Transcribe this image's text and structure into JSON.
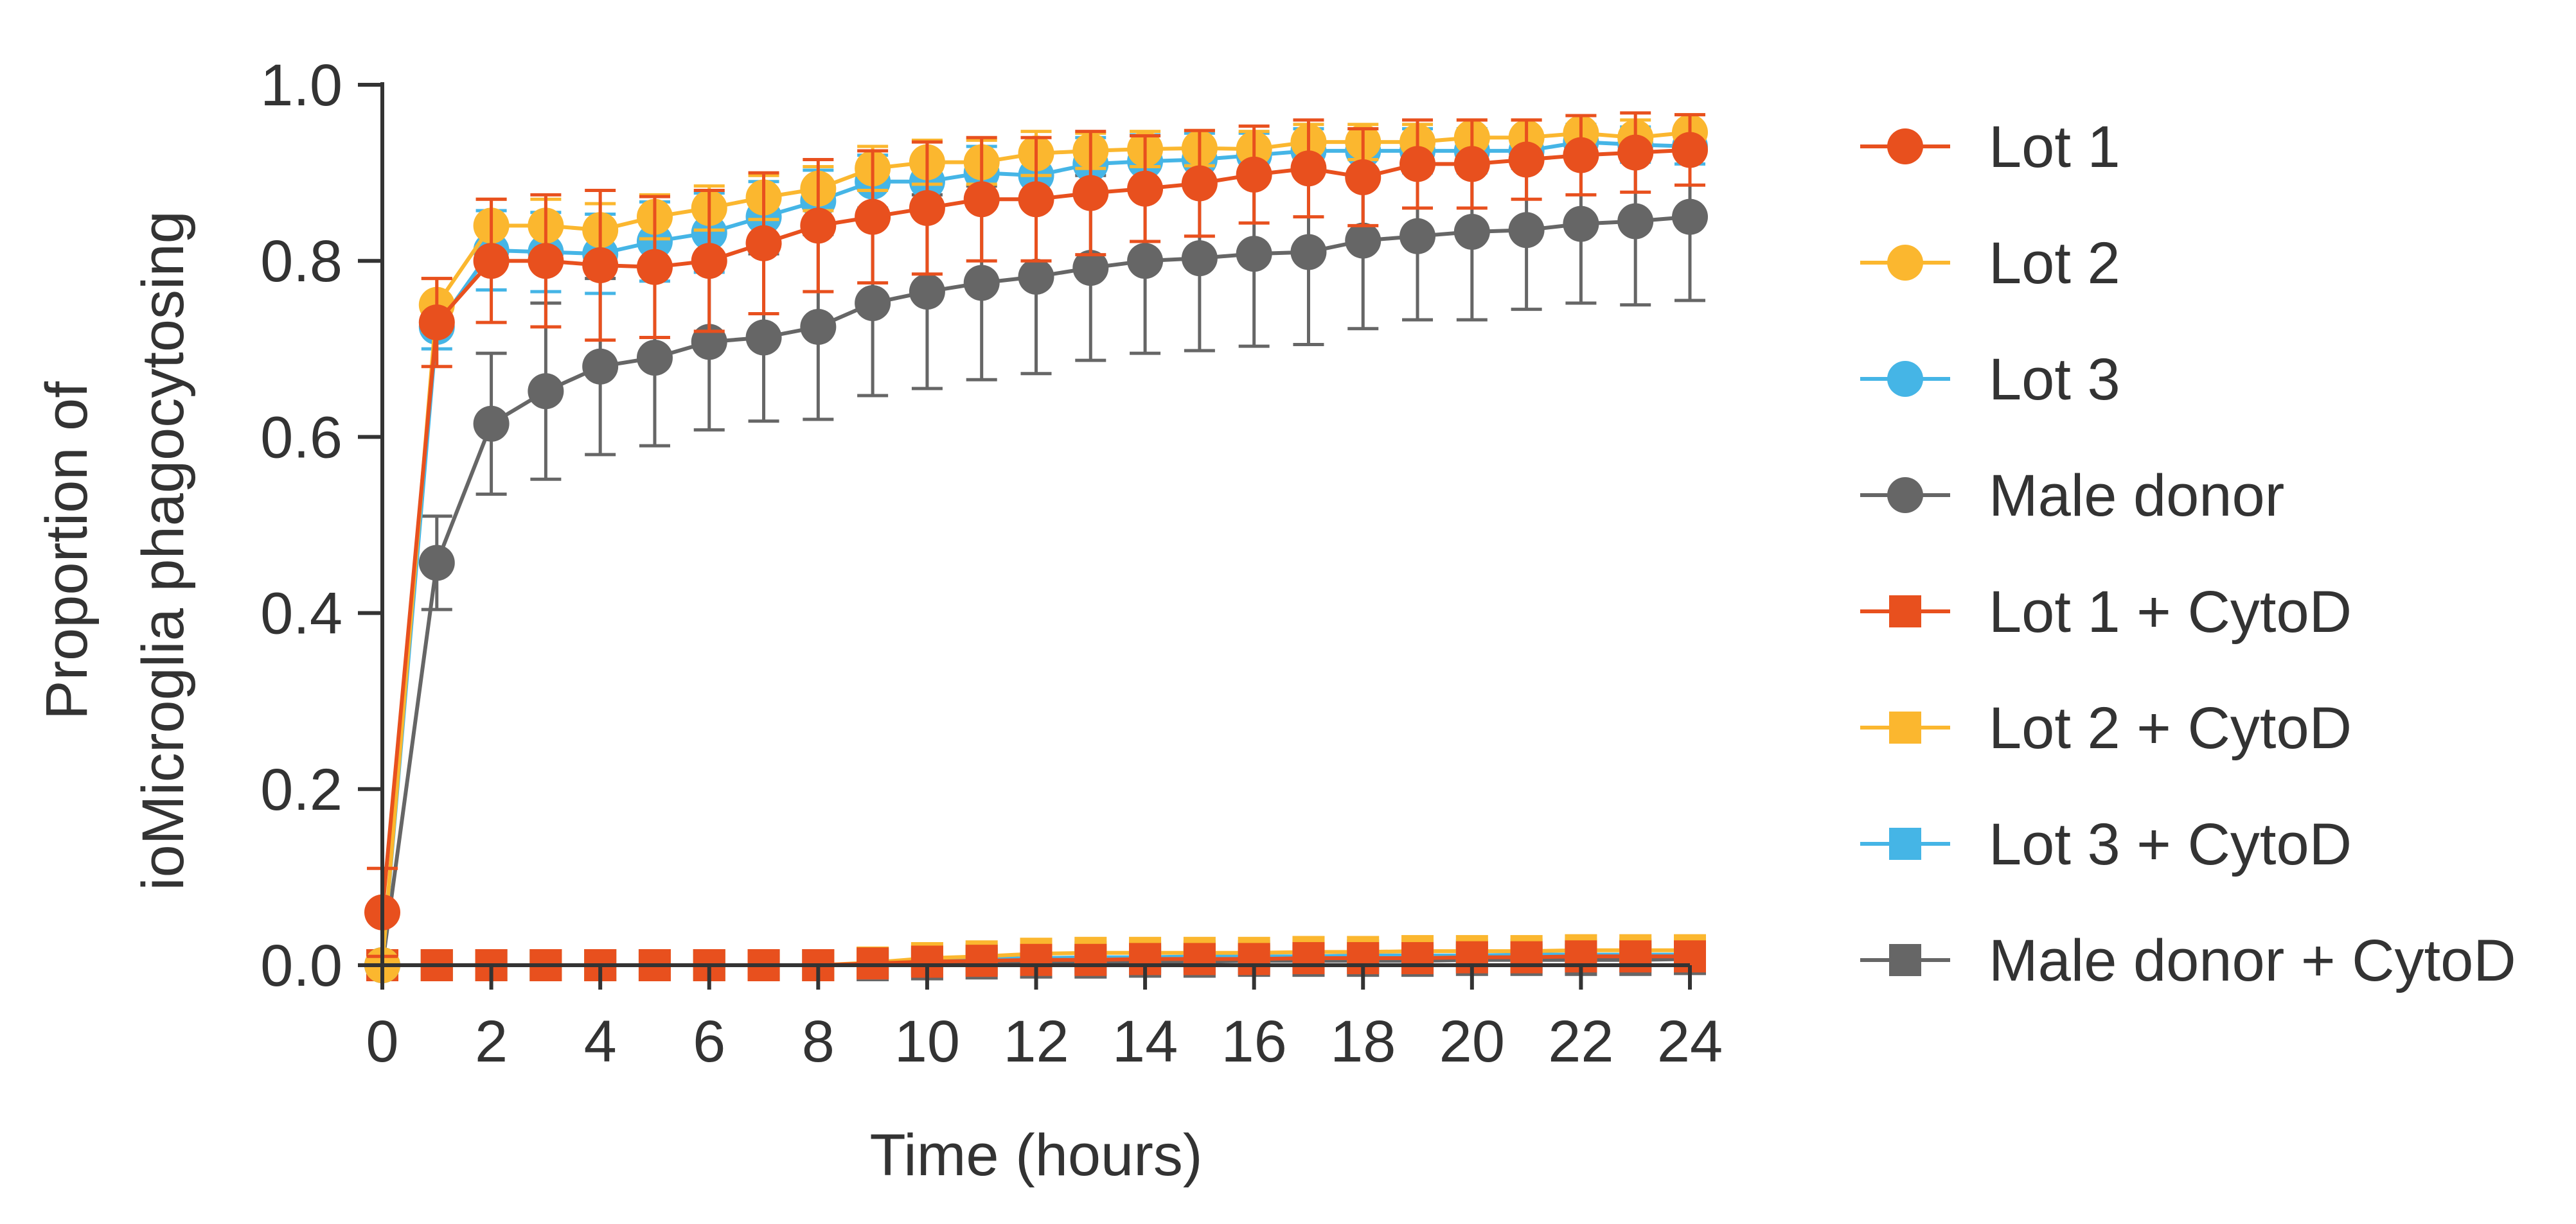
{
  "chart_data": {
    "type": "line",
    "title": "",
    "xlabel": "Time (hours)",
    "ylabel": [
      "Proportion of",
      "ioMicroglia phagocytosing"
    ],
    "xlim": [
      0,
      24
    ],
    "ylim": [
      0,
      1
    ],
    "x_ticks": [
      "0",
      "2",
      "4",
      "6",
      "8",
      "10",
      "12",
      "14",
      "16",
      "18",
      "20",
      "22",
      "24"
    ],
    "y_ticks": [
      "0.0",
      "0.2",
      "0.4",
      "0.6",
      "0.8",
      "1.0"
    ],
    "grid": false,
    "legend_position": "right",
    "x": [
      0,
      1,
      2,
      3,
      4,
      5,
      6,
      7,
      8,
      9,
      10,
      11,
      12,
      13,
      14,
      15,
      16,
      17,
      18,
      19,
      20,
      21,
      22,
      23,
      24
    ],
    "series": [
      {
        "name": "Lot 1",
        "color": "#e8501e",
        "marker": "circle",
        "draw_order": 8,
        "values": [
          0.06,
          0.73,
          0.8,
          0.8,
          0.795,
          0.793,
          0.8,
          0.82,
          0.84,
          0.85,
          0.86,
          0.87,
          0.87,
          0.877,
          0.882,
          0.888,
          0.898,
          0.905,
          0.895,
          0.91,
          0.91,
          0.915,
          0.92,
          0.923,
          0.926
        ],
        "error": [
          0.05,
          0.05,
          0.07,
          0.075,
          0.085,
          0.08,
          0.08,
          0.08,
          0.075,
          0.075,
          0.075,
          0.07,
          0.07,
          0.07,
          0.06,
          0.06,
          0.055,
          0.055,
          0.055,
          0.05,
          0.05,
          0.045,
          0.045,
          0.045,
          0.04
        ]
      },
      {
        "name": "Lot 2",
        "color": "#fbb72f",
        "marker": "circle",
        "draw_order": 7,
        "values": [
          0.0,
          0.75,
          0.84,
          0.84,
          0.835,
          0.85,
          0.86,
          0.872,
          0.882,
          0.905,
          0.912,
          0.912,
          0.922,
          0.925,
          0.927,
          0.928,
          0.927,
          0.935,
          0.935,
          0.935,
          0.94,
          0.94,
          0.945,
          0.94,
          0.946
        ],
        "error": [
          0.0,
          0.03,
          0.03,
          0.03,
          0.03,
          0.025,
          0.025,
          0.025,
          0.025,
          0.025,
          0.025,
          0.025,
          0.025,
          0.02,
          0.02,
          0.02,
          0.02,
          0.02,
          0.02,
          0.02,
          0.02,
          0.02,
          0.02,
          0.02,
          0.02
        ]
      },
      {
        "name": "Lot 3",
        "color": "#45b5e6",
        "marker": "circle",
        "draw_order": 6,
        "values": [
          0.0,
          0.725,
          0.812,
          0.81,
          0.808,
          0.822,
          0.832,
          0.85,
          0.868,
          0.89,
          0.89,
          0.9,
          0.897,
          0.91,
          0.913,
          0.915,
          0.92,
          0.925,
          0.925,
          0.925,
          0.925,
          0.925,
          0.935,
          0.932,
          0.93
        ],
        "error": [
          0.0,
          0.025,
          0.045,
          0.045,
          0.045,
          0.045,
          0.045,
          0.04,
          0.035,
          0.03,
          0.03,
          0.03,
          0.03,
          0.03,
          0.03,
          0.03,
          0.025,
          0.025,
          0.025,
          0.025,
          0.025,
          0.02,
          0.02,
          0.02,
          0.02
        ]
      },
      {
        "name": "Male donor",
        "color": "#666666",
        "marker": "circle",
        "draw_order": 5,
        "values": [
          0.0,
          0.457,
          0.615,
          0.652,
          0.68,
          0.69,
          0.708,
          0.713,
          0.725,
          0.752,
          0.765,
          0.775,
          0.782,
          0.792,
          0.8,
          0.803,
          0.808,
          0.81,
          0.823,
          0.828,
          0.833,
          0.835,
          0.842,
          0.845,
          0.85
        ],
        "error": [
          0.0,
          0.053,
          0.08,
          0.1,
          0.1,
          0.1,
          0.1,
          0.095,
          0.105,
          0.105,
          0.11,
          0.11,
          0.11,
          0.105,
          0.105,
          0.105,
          0.105,
          0.105,
          0.1,
          0.095,
          0.1,
          0.09,
          0.09,
          0.095,
          0.095
        ]
      },
      {
        "name": "Lot 1 + CytoD",
        "color": "#e8501e",
        "marker": "square",
        "draw_order": 4,
        "values": [
          0,
          0,
          0,
          0,
          0,
          0,
          0,
          0,
          0,
          0.002,
          0.004,
          0.005,
          0.006,
          0.006,
          0.007,
          0.007,
          0.007,
          0.008,
          0.008,
          0.008,
          0.009,
          0.009,
          0.01,
          0.01,
          0.01
        ],
        "error": [
          0,
          0,
          0,
          0,
          0,
          0,
          0,
          0,
          0,
          0.002,
          0.003,
          0.004,
          0.005,
          0.005,
          0.005,
          0.005,
          0.006,
          0.006,
          0.006,
          0.006,
          0.006,
          0.006,
          0.006,
          0.006,
          0.006
        ]
      },
      {
        "name": "Lot 2 + CytoD",
        "color": "#fbb72f",
        "marker": "square",
        "draw_order": 3,
        "values": [
          0,
          0,
          0,
          0,
          0,
          0,
          0,
          0,
          0,
          0.003,
          0.008,
          0.01,
          0.013,
          0.014,
          0.014,
          0.014,
          0.014,
          0.015,
          0.015,
          0.016,
          0.016,
          0.016,
          0.017,
          0.017,
          0.017
        ],
        "error": [
          0,
          0,
          0,
          0,
          0,
          0,
          0,
          0,
          0,
          0.003,
          0.005,
          0.006,
          0.006,
          0.006,
          0.006,
          0.006,
          0.006,
          0.006,
          0.006,
          0.006,
          0.006,
          0.006,
          0.006,
          0.006,
          0.006
        ]
      },
      {
        "name": "Lot 3 + CytoD",
        "color": "#45b5e6",
        "marker": "square",
        "draw_order": 2,
        "values": [
          0,
          0,
          0,
          0,
          0,
          0,
          0,
          0,
          0,
          0.002,
          0.005,
          0.007,
          0.008,
          0.009,
          0.009,
          0.01,
          0.01,
          0.01,
          0.011,
          0.011,
          0.011,
          0.012,
          0.012,
          0.012,
          0.012
        ],
        "error": [
          0,
          0,
          0,
          0,
          0,
          0,
          0,
          0,
          0,
          0.002,
          0.003,
          0.004,
          0.004,
          0.004,
          0.004,
          0.004,
          0.004,
          0.004,
          0.004,
          0.004,
          0.004,
          0.004,
          0.004,
          0.004,
          0.004
        ]
      },
      {
        "name": "Male donor + CytoD",
        "color": "#666666",
        "marker": "square",
        "draw_order": 1,
        "values": [
          0,
          0,
          0,
          0,
          0,
          0,
          0,
          0,
          0,
          0,
          0.001,
          0.002,
          0.003,
          0.003,
          0.004,
          0.004,
          0.005,
          0.005,
          0.005,
          0.005,
          0.006,
          0.006,
          0.006,
          0.006,
          0.007
        ],
        "error": [
          0,
          0,
          0,
          0,
          0,
          0,
          0,
          0,
          0,
          0,
          0.001,
          0.002,
          0.002,
          0.002,
          0.002,
          0.002,
          0.002,
          0.002,
          0.002,
          0.002,
          0.002,
          0.002,
          0.002,
          0.002,
          0.002
        ]
      }
    ]
  }
}
